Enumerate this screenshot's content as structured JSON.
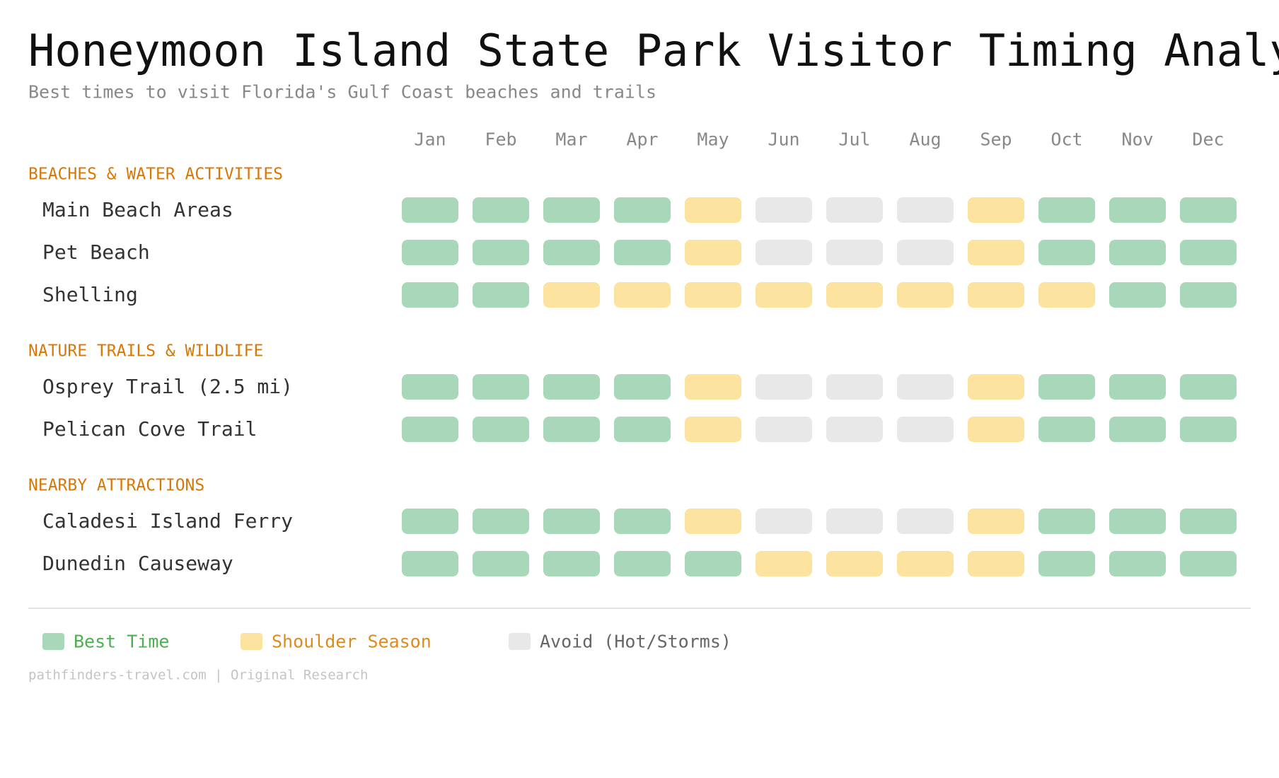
{
  "header": {
    "title": "Honeymoon Island State Park Visitor Timing Analysis",
    "subtitle": "Best times to visit Florida's Gulf Coast beaches and trails"
  },
  "months": [
    "Jan",
    "Feb",
    "Mar",
    "Apr",
    "May",
    "Jun",
    "Jul",
    "Aug",
    "Sep",
    "Oct",
    "Nov",
    "Dec"
  ],
  "legend": [
    {
      "label": "Best Time",
      "color": "#a8d8b9",
      "text_color": "#4caf50"
    },
    {
      "label": "Shoulder Season",
      "color": "#fce4a0",
      "text_color": "#e08a1e"
    },
    {
      "label": "Avoid (Hot/Storms)",
      "color": "#e8e8e8",
      "text_color": "#666666"
    }
  ],
  "sections": [
    {
      "title": "BEACHES & WATER ACTIVITIES",
      "rows": [
        {
          "label": "Main Beach Areas",
          "cells": [
            0,
            0,
            0,
            0,
            1,
            2,
            2,
            2,
            1,
            0,
            0,
            0
          ]
        },
        {
          "label": "Pet Beach",
          "cells": [
            0,
            0,
            0,
            0,
            1,
            2,
            2,
            2,
            1,
            0,
            0,
            0
          ]
        },
        {
          "label": "Shelling",
          "cells": [
            0,
            0,
            1,
            1,
            1,
            1,
            1,
            1,
            1,
            1,
            0,
            0
          ]
        }
      ]
    },
    {
      "title": "NATURE TRAILS & WILDLIFE",
      "rows": [
        {
          "label": "Osprey Trail (2.5 mi)",
          "cells": [
            0,
            0,
            0,
            0,
            1,
            2,
            2,
            2,
            1,
            0,
            0,
            0
          ]
        },
        {
          "label": "Pelican Cove Trail",
          "cells": [
            0,
            0,
            0,
            0,
            1,
            2,
            2,
            2,
            1,
            0,
            0,
            0
          ]
        }
      ]
    },
    {
      "title": "NEARBY ATTRACTIONS",
      "rows": [
        {
          "label": "Caladesi Island Ferry",
          "cells": [
            0,
            0,
            0,
            0,
            1,
            2,
            2,
            2,
            1,
            0,
            0,
            0
          ]
        },
        {
          "label": "Dunedin Causeway",
          "cells": [
            0,
            0,
            0,
            0,
            0,
            1,
            1,
            1,
            1,
            0,
            0,
            0
          ]
        }
      ]
    }
  ],
  "footer": "pathfinders-travel.com | Original Research"
}
